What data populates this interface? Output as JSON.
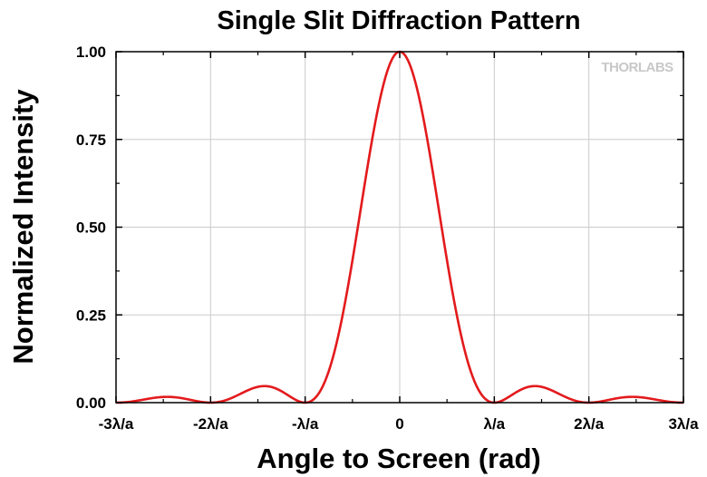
{
  "chart_data": {
    "type": "line",
    "title": "Single Slit Diffraction Pattern",
    "xlabel": "Angle to Screen (rad)",
    "ylabel": "Normalized Intensity",
    "watermark": "THORLABS",
    "x_tick_labels": [
      "-3λ/a",
      "-2λ/a",
      "-λ/a",
      "0",
      "λ/a",
      "2λ/a",
      "3λ/a"
    ],
    "y_tick_labels": [
      "0.00",
      "0.25",
      "0.50",
      "0.75",
      "1.00"
    ],
    "xlim": [
      -3,
      3
    ],
    "ylim": [
      0,
      1
    ],
    "x_units": "λ/a",
    "grid": true,
    "series": [
      {
        "color": "#e31a1c",
        "function": "sinc^2",
        "x": [
          -3.0,
          -2.75,
          -2.5,
          -2.25,
          -2.0,
          -1.75,
          -1.5,
          -1.25,
          -1.0,
          -0.75,
          -0.5,
          -0.25,
          0.0,
          0.25,
          0.5,
          0.75,
          1.0,
          1.25,
          1.5,
          1.75,
          2.0,
          2.25,
          2.5,
          2.75,
          3.0
        ],
        "y": [
          0.0,
          0.007,
          0.016,
          0.009,
          0.0,
          0.017,
          0.045,
          0.026,
          0.0,
          0.09,
          0.405,
          0.811,
          1.0,
          0.811,
          0.405,
          0.09,
          0.0,
          0.026,
          0.045,
          0.017,
          0.0,
          0.009,
          0.016,
          0.007,
          0.0
        ]
      }
    ]
  }
}
